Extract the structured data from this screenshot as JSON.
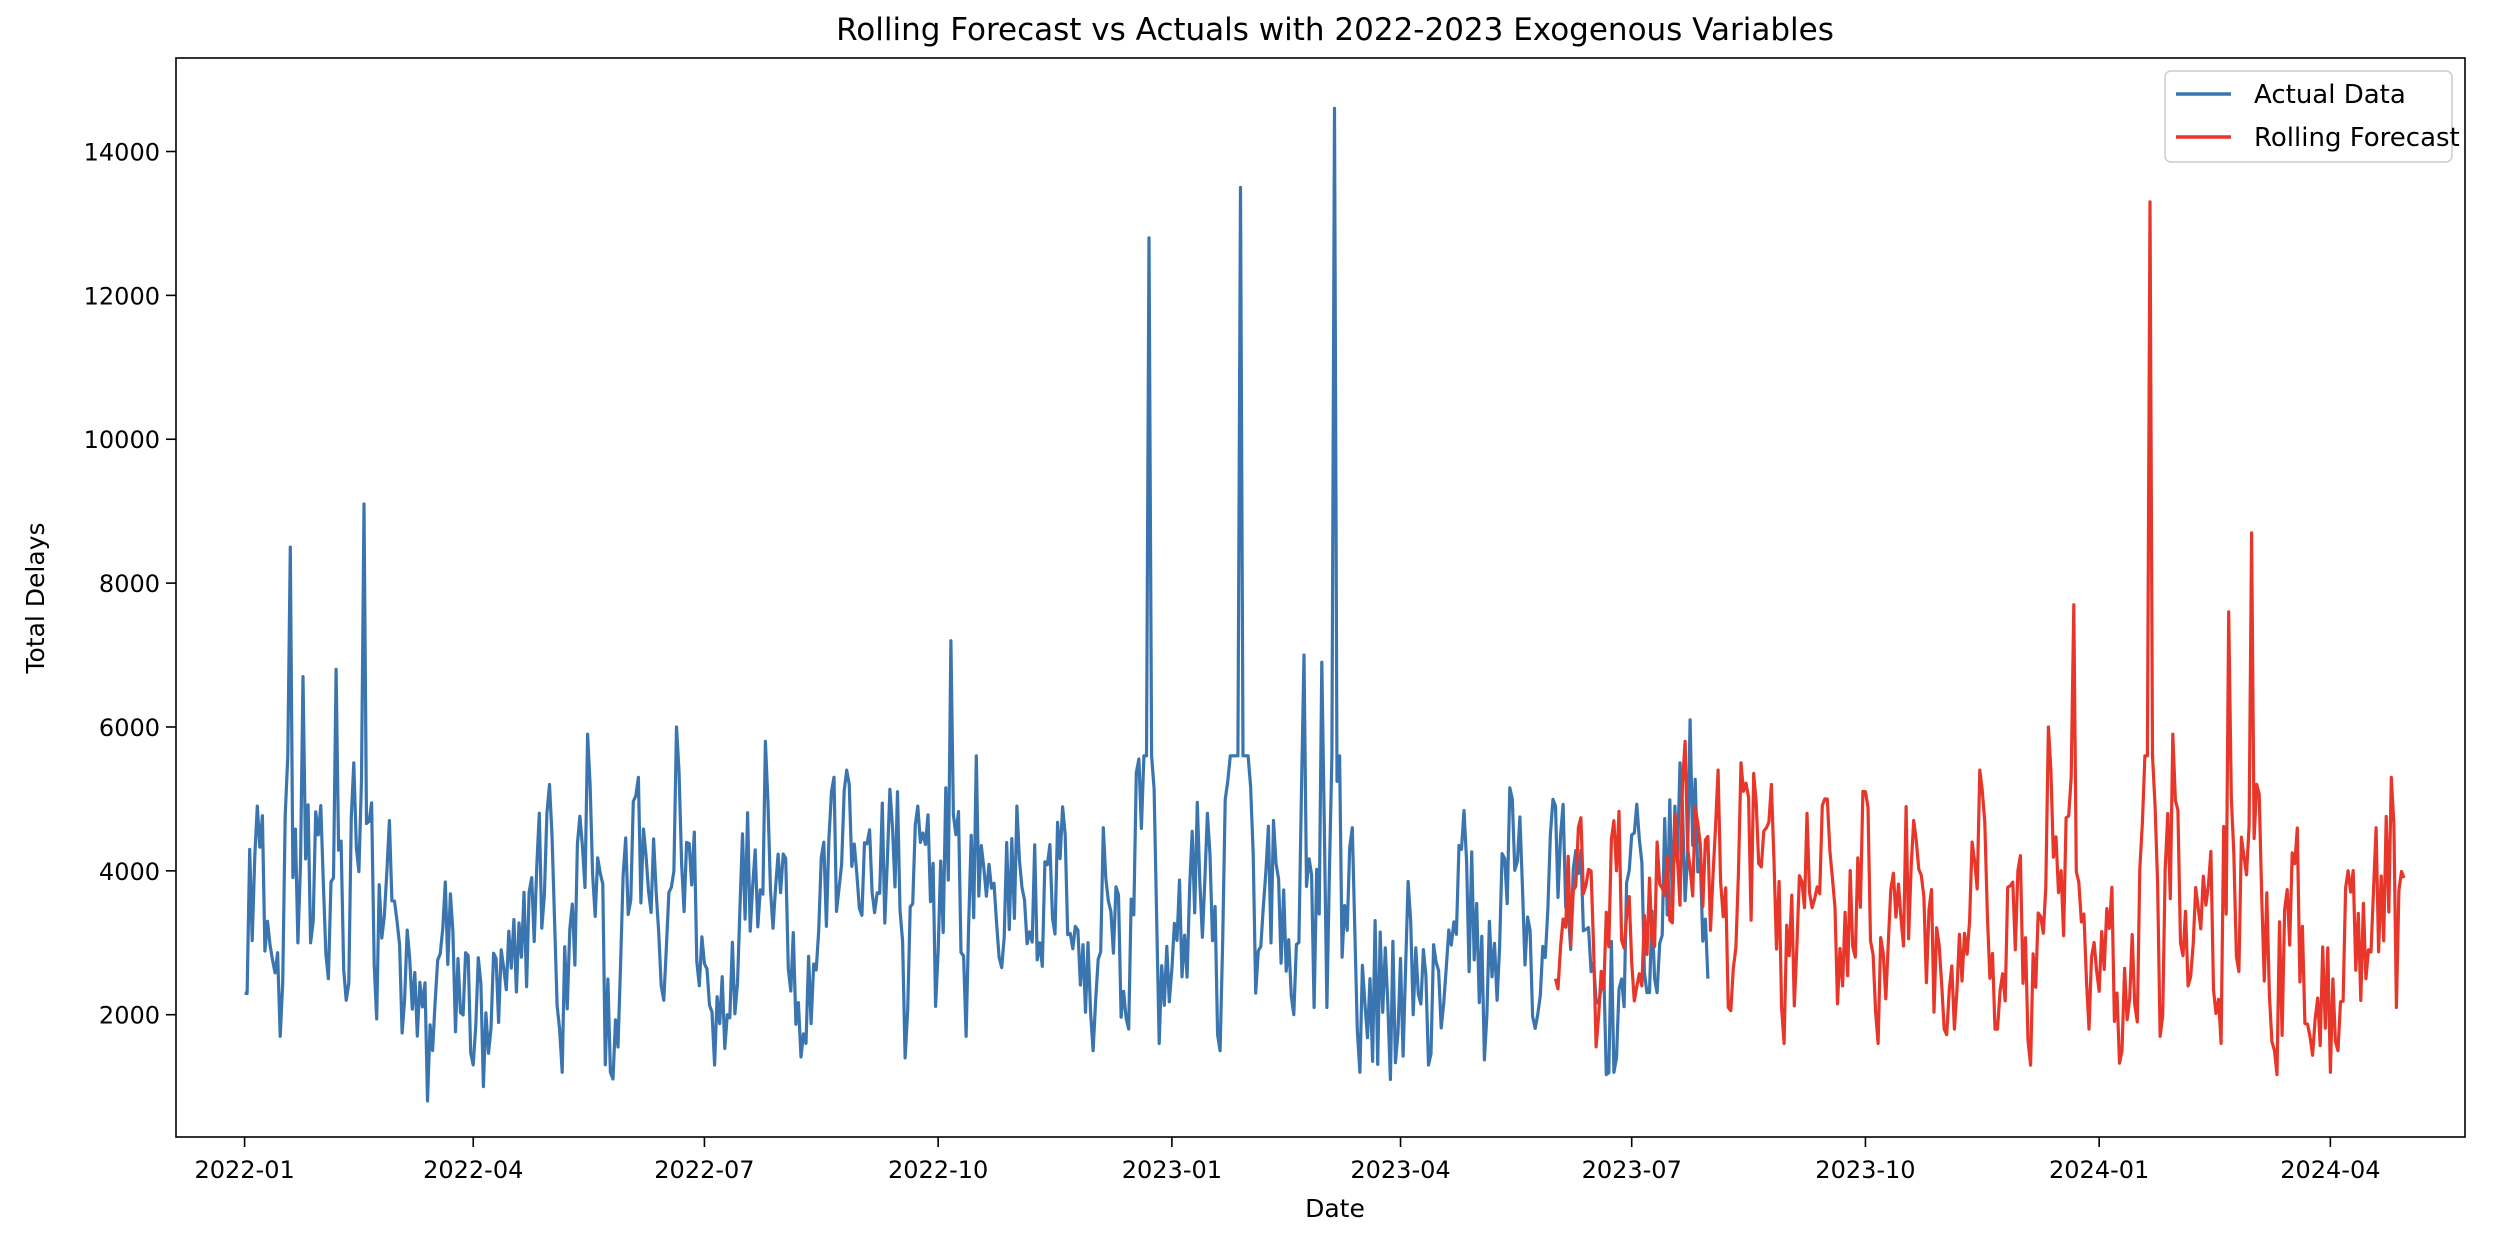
{
  "chart_data": {
    "type": "line",
    "title": "Rolling Forecast vs Actuals with 2022-2023 Exogenous Variables",
    "xlabel": "Date",
    "ylabel": "Total Delays",
    "xlim": [
      "2021-12-05",
      "2024-05-24"
    ],
    "ylim": [
      300,
      15300
    ],
    "grid": false,
    "legend_position": "top-right",
    "x_ticks": [
      "2022-01",
      "2022-04",
      "2022-07",
      "2022-10",
      "2023-01",
      "2023-04",
      "2023-07",
      "2023-10",
      "2024-01",
      "2024-04"
    ],
    "y_ticks": [
      2000,
      4000,
      6000,
      8000,
      10000,
      12000,
      14000
    ],
    "series": [
      {
        "name": "Actual Data",
        "color": "#3b75af",
        "start_date": "2022-01-01",
        "end_date": "2023-07-31",
        "anchors": [
          [
            "2022-01-01",
            2300
          ],
          [
            "2022-01-03",
            4300
          ],
          [
            "2022-01-06",
            4900
          ],
          [
            "2022-01-10",
            3300
          ],
          [
            "2022-01-15",
            1700
          ],
          [
            "2022-01-19",
            8500
          ],
          [
            "2022-01-22",
            3000
          ],
          [
            "2022-01-24",
            6700
          ],
          [
            "2022-01-27",
            3000
          ],
          [
            "2022-01-30",
            4500
          ],
          [
            "2022-02-03",
            2500
          ],
          [
            "2022-02-06",
            6800
          ],
          [
            "2022-02-10",
            2200
          ],
          [
            "2022-02-13",
            5500
          ],
          [
            "2022-02-17",
            9100
          ],
          [
            "2022-02-21",
            2700
          ],
          [
            "2022-02-26",
            4000
          ],
          [
            "2022-03-05",
            2200
          ],
          [
            "2022-03-14",
            800
          ],
          [
            "2022-03-20",
            3200
          ],
          [
            "2022-04-05",
            1000
          ],
          [
            "2022-04-20",
            2800
          ],
          [
            "2022-05-01",
            5200
          ],
          [
            "2022-05-06",
            1200
          ],
          [
            "2022-05-16",
            5900
          ],
          [
            "2022-05-25",
            1200
          ],
          [
            "2022-06-05",
            5300
          ],
          [
            "2022-06-15",
            2200
          ],
          [
            "2022-06-20",
            6000
          ],
          [
            "2022-07-05",
            1300
          ],
          [
            "2022-07-15",
            3500
          ],
          [
            "2022-07-25",
            5800
          ],
          [
            "2022-08-10",
            1600
          ],
          [
            "2022-08-20",
            5100
          ],
          [
            "2022-08-26",
            5400
          ],
          [
            "2022-09-05",
            3700
          ],
          [
            "2022-09-15",
            5100
          ],
          [
            "2022-09-18",
            1400
          ],
          [
            "2022-09-23",
            4900
          ],
          [
            "2022-10-01",
            2900
          ],
          [
            "2022-10-06",
            7200
          ],
          [
            "2022-10-12",
            1700
          ],
          [
            "2022-10-16",
            5600
          ],
          [
            "2022-10-25",
            2800
          ],
          [
            "2022-11-01",
            4900
          ],
          [
            "2022-11-10",
            3000
          ],
          [
            "2022-11-20",
            4500
          ],
          [
            "2022-12-01",
            1500
          ],
          [
            "2022-12-05",
            4600
          ],
          [
            "2022-12-15",
            1800
          ],
          [
            "2022-12-23",
            12800
          ],
          [
            "2022-12-27",
            1600
          ],
          [
            "2023-01-15",
            4800
          ],
          [
            "2023-01-20",
            1500
          ],
          [
            "2023-01-28",
            13500
          ],
          [
            "2023-02-03",
            2300
          ],
          [
            "2023-02-10",
            4700
          ],
          [
            "2023-02-18",
            2000
          ],
          [
            "2023-02-22",
            7000
          ],
          [
            "2023-02-26",
            2100
          ],
          [
            "2023-03-01",
            6900
          ],
          [
            "2023-03-03",
            2100
          ],
          [
            "2023-03-06",
            14600
          ],
          [
            "2023-03-09",
            2800
          ],
          [
            "2023-03-13",
            4600
          ],
          [
            "2023-03-16",
            1200
          ],
          [
            "2023-03-20",
            2500
          ],
          [
            "2023-03-28",
            1100
          ],
          [
            "2023-04-05",
            3300
          ],
          [
            "2023-04-12",
            1300
          ],
          [
            "2023-04-25",
            4300
          ],
          [
            "2023-05-05",
            2000
          ],
          [
            "2023-05-15",
            5000
          ],
          [
            "2023-05-25",
            2000
          ],
          [
            "2023-06-01",
            4900
          ],
          [
            "2023-06-15",
            2600
          ],
          [
            "2023-06-24",
            1200
          ],
          [
            "2023-07-01",
            4500
          ],
          [
            "2023-07-10",
            2500
          ],
          [
            "2023-07-20",
            5500
          ],
          [
            "2023-07-24",
            6100
          ],
          [
            "2023-07-31",
            2500
          ]
        ]
      },
      {
        "name": "Rolling Forecast",
        "color": "#e8372a",
        "start_date": "2023-06-01",
        "end_date": "2024-04-30",
        "anchors": [
          [
            "2023-06-01",
            2500
          ],
          [
            "2023-06-10",
            4600
          ],
          [
            "2023-06-18",
            2000
          ],
          [
            "2023-06-25",
            4000
          ],
          [
            "2023-07-05",
            2400
          ],
          [
            "2023-07-15",
            4200
          ],
          [
            "2023-07-22",
            5800
          ],
          [
            "2023-07-29",
            3500
          ],
          [
            "2023-08-04",
            5400
          ],
          [
            "2023-08-08",
            2100
          ],
          [
            "2023-08-13",
            5500
          ],
          [
            "2023-08-25",
            5200
          ],
          [
            "2023-08-30",
            1600
          ],
          [
            "2023-09-08",
            4800
          ],
          [
            "2023-09-15",
            5000
          ],
          [
            "2023-09-22",
            2400
          ],
          [
            "2023-10-01",
            5100
          ],
          [
            "2023-10-06",
            1600
          ],
          [
            "2023-10-20",
            4700
          ],
          [
            "2023-11-01",
            1800
          ],
          [
            "2023-11-12",
            4400
          ],
          [
            "2023-11-15",
            5400
          ],
          [
            "2023-11-22",
            1800
          ],
          [
            "2023-11-30",
            4000
          ],
          [
            "2023-12-05",
            1300
          ],
          [
            "2023-12-12",
            6000
          ],
          [
            "2023-12-18",
            3100
          ],
          [
            "2023-12-22",
            7700
          ],
          [
            "2023-12-28",
            1800
          ],
          [
            "2024-01-05",
            3200
          ],
          [
            "2024-01-10",
            1500
          ],
          [
            "2024-01-16",
            1900
          ],
          [
            "2024-01-21",
            13300
          ],
          [
            "2024-01-25",
            1700
          ],
          [
            "2024-01-30",
            5900
          ],
          [
            "2024-02-05",
            2400
          ],
          [
            "2024-02-13",
            3800
          ],
          [
            "2024-02-18",
            1600
          ],
          [
            "2024-02-21",
            7600
          ],
          [
            "2024-02-25",
            2600
          ],
          [
            "2024-03-01",
            8700
          ],
          [
            "2024-03-05",
            3600
          ],
          [
            "2024-03-10",
            1500
          ],
          [
            "2024-03-18",
            4100
          ],
          [
            "2024-03-24",
            1700
          ],
          [
            "2024-04-01",
            1200
          ],
          [
            "2024-04-08",
            4000
          ],
          [
            "2024-04-15",
            2500
          ],
          [
            "2024-04-25",
            5300
          ],
          [
            "2024-04-27",
            2100
          ],
          [
            "2024-04-30",
            3900
          ]
        ]
      }
    ]
  }
}
